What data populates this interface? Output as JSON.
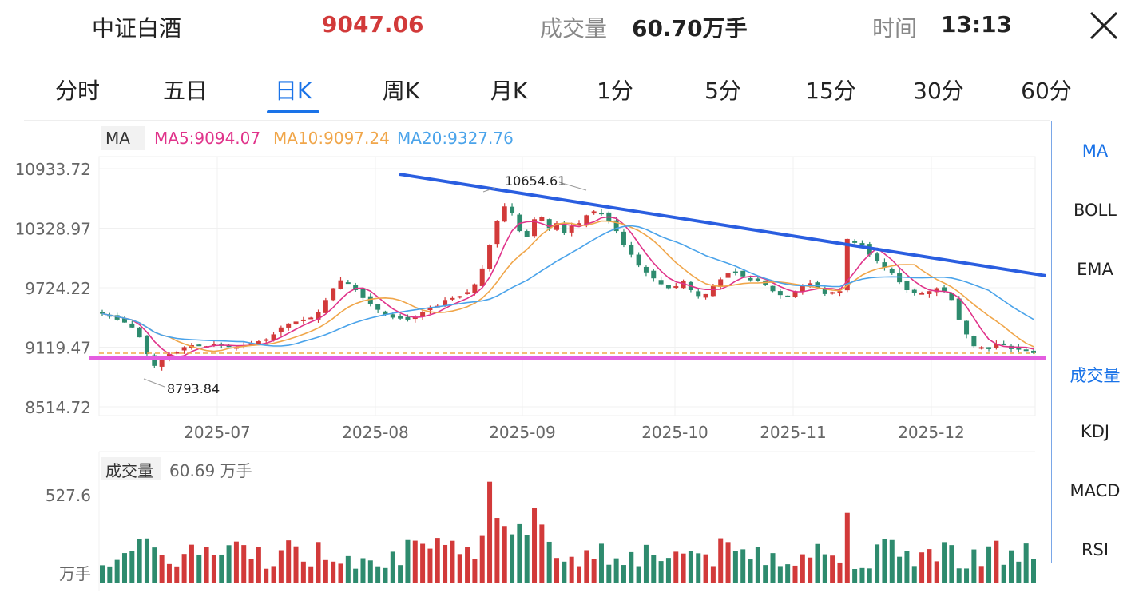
{
  "header": {
    "title": "中证白酒",
    "price": "9047.06",
    "volume_label": "成交量",
    "volume_value": "60.70万手",
    "time_label": "时间",
    "time_value": "13:13",
    "close_icon": "close-icon"
  },
  "tabs": [
    {
      "label": "分时",
      "active": false
    },
    {
      "label": "五日",
      "active": false
    },
    {
      "label": "日K",
      "active": true
    },
    {
      "label": "周K",
      "active": false
    },
    {
      "label": "月K",
      "active": false
    },
    {
      "label": "1分",
      "active": false
    },
    {
      "label": "5分",
      "active": false
    },
    {
      "label": "15分",
      "active": false
    },
    {
      "label": "30分",
      "active": false
    },
    {
      "label": "60分",
      "active": false
    }
  ],
  "indicator_bar": {
    "label": "MA",
    "ma5": "MA5:9094.07",
    "ma10": "MA10:9097.24",
    "ma20": "MA20:9327.76"
  },
  "volume_bar": {
    "label": "成交量",
    "value": "60.69 万手"
  },
  "side_menu": {
    "main_items": [
      "MA",
      "BOLL",
      "EMA"
    ],
    "sub_items": [
      "成交量",
      "KDJ",
      "MACD",
      "RSI"
    ],
    "active_main": "MA",
    "active_sub": "成交量"
  },
  "colors": {
    "up": "#d23a3a",
    "down": "#2e8b6e",
    "ma5": "#e0338a",
    "ma10": "#f0a64a",
    "ma20": "#4aa3ea",
    "trendline": "#2a5ee0",
    "support": "#e45de0",
    "dashed": "#f0a64a",
    "accent": "#1a73e8"
  },
  "chart_data": {
    "type": "candlestick",
    "y_ticks": [
      "10933.72",
      "10328.97",
      "9724.22",
      "9119.47",
      "8514.72"
    ],
    "ylim": [
      8514.72,
      10933.72
    ],
    "x_ticks": [
      "2025-07",
      "2025-08",
      "2025-09",
      "2025-10",
      "2025-11",
      "2025-12"
    ],
    "annotations": {
      "high": "10654.61",
      "low": "8793.84"
    },
    "volume_axis": {
      "max_label": "527.6",
      "unit": "万手"
    },
    "trend_data": [
      9460,
      9430,
      9400,
      9370,
      9320,
      9220,
      9050,
      8930,
      9000,
      9050,
      9070,
      9120,
      9140,
      9140,
      9130,
      9150,
      9140,
      9130,
      9120,
      9140,
      9160,
      9180,
      9200,
      9250,
      9320,
      9360,
      9380,
      9400,
      9420,
      9480,
      9600,
      9720,
      9800,
      9770,
      9700,
      9620,
      9560,
      9500,
      9450,
      9420,
      9410,
      9400,
      9430,
      9480,
      9520,
      9540,
      9600,
      9620,
      9640,
      9680,
      9760,
      9920,
      10160,
      10400,
      10550,
      10480,
      10300,
      10240,
      10420,
      10440,
      10330,
      10380,
      10280,
      10350,
      10380,
      10460,
      10500,
      10480,
      10400,
      10300,
      10160,
      10060,
      9950,
      9880,
      9820,
      9760,
      9720,
      9740,
      9790,
      9700,
      9640,
      9660,
      9740,
      9810,
      9870,
      9880,
      9840,
      9800,
      9790,
      9750,
      9690,
      9650,
      9640,
      9690,
      9750,
      9770,
      9720,
      9660,
      9680,
      9690,
      10220,
      10180,
      10170,
      10060,
      10000,
      9930,
      9870,
      9780,
      9700,
      9670,
      9670,
      9690,
      9720,
      9690,
      9600,
      9400,
      9250,
      9130,
      9120,
      9100,
      9150,
      9140,
      9100,
      9110,
      9090,
      9060
    ]
  }
}
